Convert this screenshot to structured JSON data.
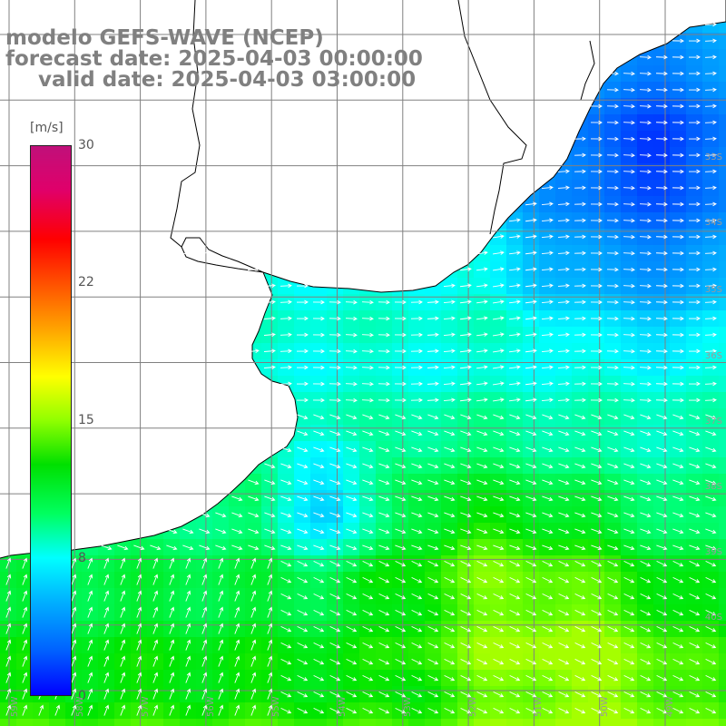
{
  "title": {
    "line1": "modelo GEFS-WAVE (NCEP)",
    "line2": "forecast date: 2025-04-03 00:00:00",
    "line3": "valid date: 2025-04-03 03:00:00"
  },
  "colorbar": {
    "unit": "[m/s]",
    "ticks": [
      "30",
      "22",
      "15",
      "8",
      "0"
    ],
    "tick_values": [
      30,
      22,
      15,
      8,
      0
    ],
    "min": 0,
    "max": 30,
    "colors": [
      "#0000ff",
      "#0060ff",
      "#00b0ff",
      "#00ffff",
      "#00ff60",
      "#00e000",
      "#90ff00",
      "#ffff00",
      "#ffa000",
      "#ff5000",
      "#ff0000",
      "#e0006a",
      "#c0107a"
    ]
  },
  "latitude_labels": [
    "33S",
    "34S",
    "35S",
    "36S",
    "37S",
    "38S",
    "39S",
    "40S"
  ],
  "longitude_labels": [
    "59W",
    "58W",
    "57W",
    "56W",
    "55W",
    "54W",
    "53W",
    "52W",
    "51W",
    "50W",
    "49W",
    "48W"
  ],
  "style": {
    "land_color": "#ffffff",
    "coast_color": "#000000",
    "grid_color": "#808080",
    "arrow_color": "#ffffff",
    "title_color": "#808080"
  },
  "field": {
    "variable": "wind speed",
    "units": "m/s"
  }
}
